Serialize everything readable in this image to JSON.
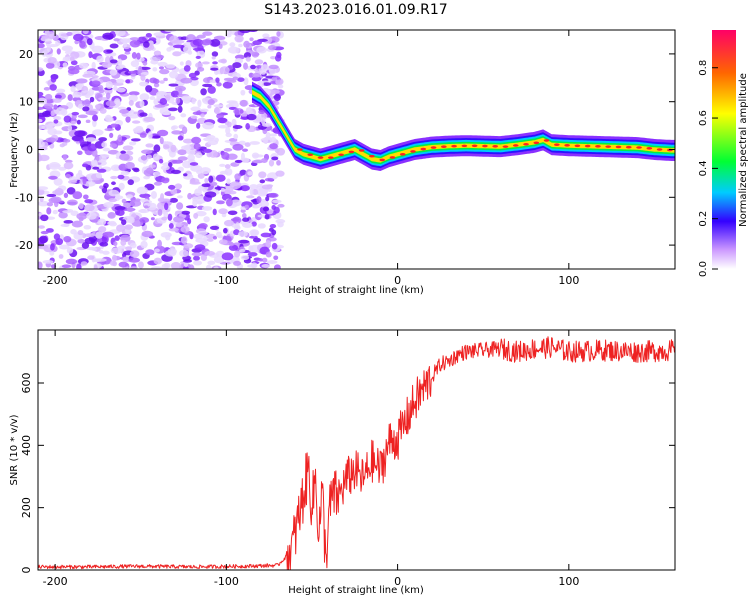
{
  "title": "S143.2023.016.01.09.R17",
  "chart_data": [
    {
      "type": "heatmap",
      "xlabel": "Height of straight line (km)",
      "ylabel": "Frequency (Hz)",
      "xlim": [
        -210,
        162
      ],
      "ylim": [
        -25,
        25
      ],
      "xticks": [
        -200,
        -100,
        0,
        100
      ],
      "yticks": [
        20,
        10,
        0,
        -10,
        -20
      ],
      "colorbar": {
        "label": "Normalized spectral amplitude",
        "range": [
          0.0,
          0.95
        ],
        "ticks": [
          0.0,
          0.2,
          0.4,
          0.6,
          0.8
        ]
      },
      "ridge": {
        "x": [
          -85,
          -80,
          -75,
          -70,
          -65,
          -60,
          -55,
          -50,
          -45,
          -40,
          -35,
          -30,
          -25,
          -20,
          -15,
          -10,
          -5,
          0,
          5,
          10,
          20,
          30,
          40,
          50,
          60,
          70,
          80,
          85,
          90,
          100,
          110,
          120,
          130,
          140,
          150,
          160
        ],
        "frequency": [
          12,
          11,
          9,
          6,
          3,
          0,
          -1,
          -1.5,
          -2,
          -1.5,
          -1,
          -0.5,
          0,
          -1,
          -2,
          -2.3,
          -1.5,
          -1,
          -0.5,
          0,
          0.5,
          0.7,
          0.8,
          0.7,
          0.6,
          1,
          1.5,
          2,
          1,
          0.8,
          0.7,
          0.6,
          0.5,
          0.4,
          0,
          -0.2
        ]
      }
    },
    {
      "type": "line",
      "xlabel": "Height of straight line (km)",
      "ylabel": "SNR (10 * v/v)",
      "xlim": [
        -210,
        162
      ],
      "ylim": [
        0,
        770
      ],
      "xticks": [
        -200,
        -100,
        0,
        100
      ],
      "yticks": [
        0,
        200,
        400,
        600
      ],
      "series": [
        {
          "color": "#ee2222",
          "x": [
            -210,
            -180,
            -150,
            -120,
            -90,
            -70,
            -62,
            -58,
            -55,
            -52,
            -50,
            -48,
            -46,
            -44,
            -42,
            -40,
            -38,
            -35,
            -30,
            -25,
            -20,
            -15,
            -10,
            -5,
            0,
            5,
            10,
            15,
            20,
            25,
            30,
            35,
            40,
            50,
            60,
            70,
            80,
            90,
            100,
            120,
            140,
            162
          ],
          "values": [
            10,
            10,
            12,
            10,
            12,
            15,
            60,
            160,
            240,
            330,
            200,
            300,
            120,
            250,
            30,
            180,
            240,
            230,
            290,
            320,
            290,
            350,
            320,
            410,
            420,
            480,
            540,
            580,
            620,
            660,
            670,
            690,
            700,
            705,
            710,
            700,
            710,
            715,
            700,
            705,
            700,
            705
          ]
        }
      ]
    }
  ]
}
